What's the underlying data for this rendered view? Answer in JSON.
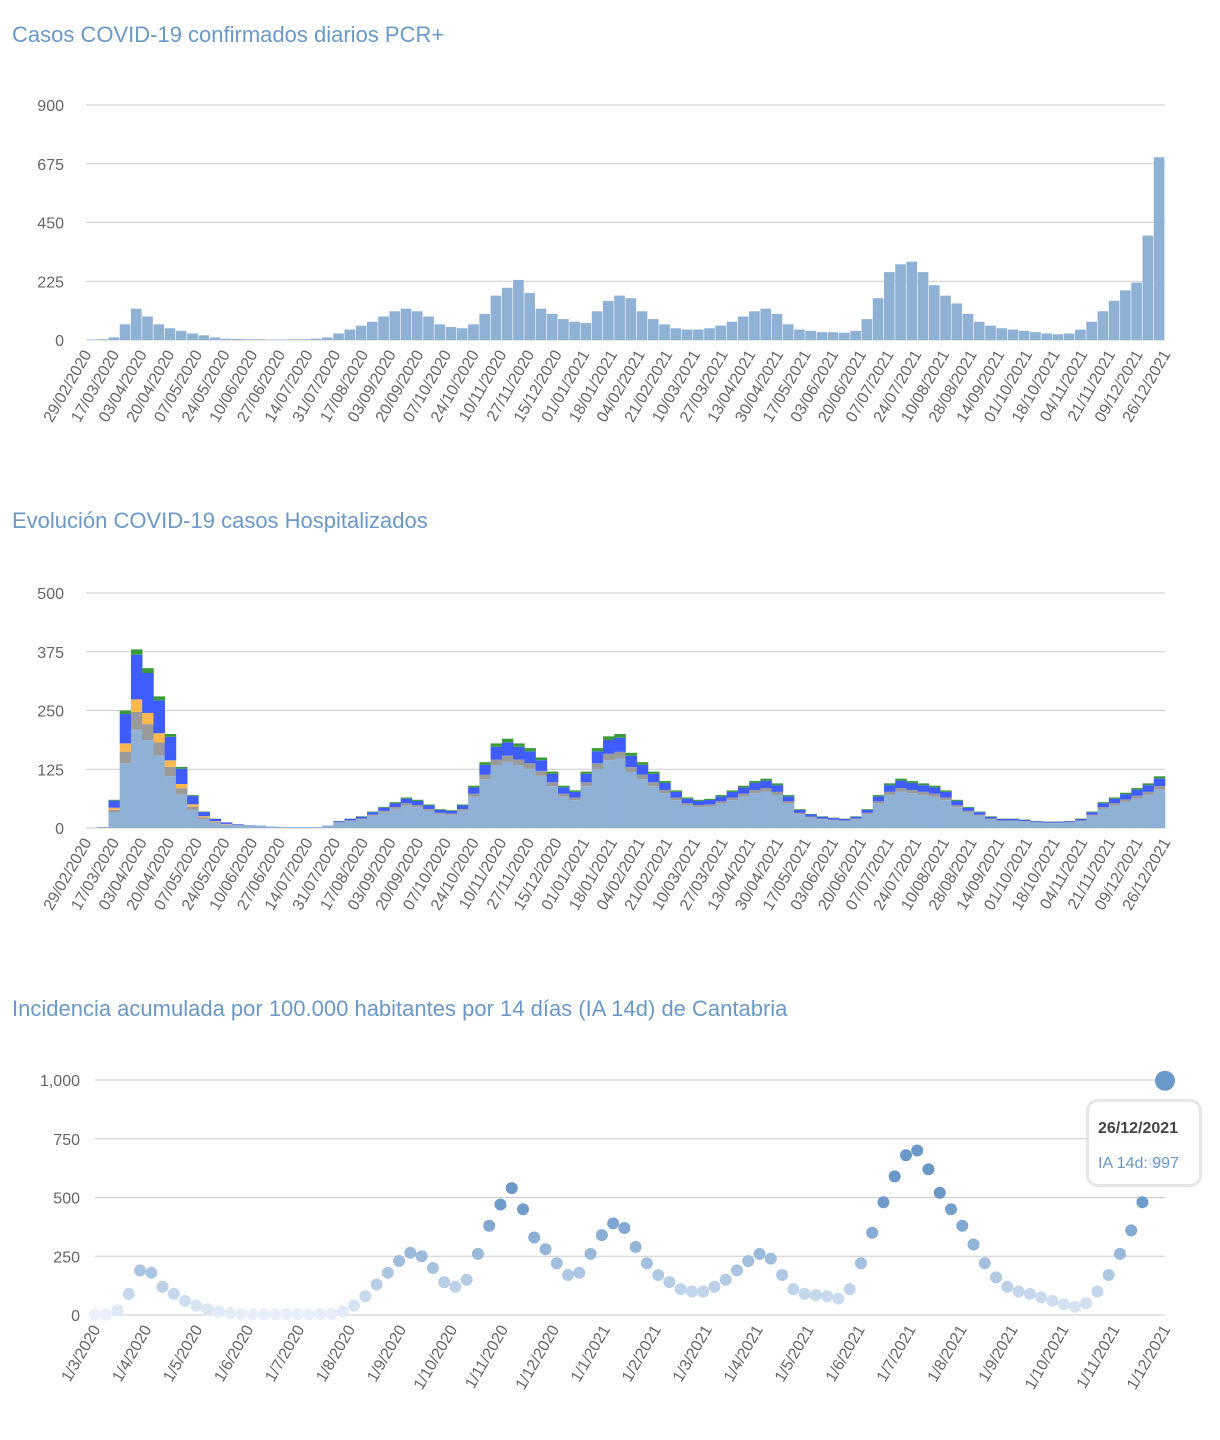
{
  "chart_data": [
    {
      "type": "bar",
      "title": "Casos COVID-19 confirmados diarios PCR+",
      "ylim": [
        0,
        900
      ],
      "yticks": [
        "0",
        "225",
        "450",
        "675",
        "900"
      ],
      "xticks": [
        "29/02/2020",
        "17/03/2020",
        "03/04/2020",
        "20/04/2020",
        "07/05/2020",
        "24/05/2020",
        "10/06/2020",
        "27/06/2020",
        "14/07/2020",
        "31/07/2020",
        "17/08/2020",
        "03/09/2020",
        "20/09/2020",
        "07/10/2020",
        "24/10/2020",
        "10/11/2020",
        "27/11/2020",
        "15/12/2020",
        "01/01/2021",
        "18/01/2021",
        "04/02/2021",
        "21/02/2021",
        "10/03/2021",
        "27/03/2021",
        "13/04/2021",
        "30/04/2021",
        "17/05/2021",
        "03/06/2021",
        "20/06/2021",
        "07/07/2021",
        "24/07/2021",
        "10/08/2021",
        "28/08/2021",
        "14/09/2021",
        "01/10/2021",
        "18/10/2021",
        "04/11/2021",
        "21/11/2021",
        "09/12/2021",
        "26/12/2021"
      ],
      "color": "#8fb1d6",
      "values": [
        2,
        3,
        10,
        60,
        120,
        90,
        60,
        45,
        35,
        25,
        18,
        10,
        5,
        4,
        3,
        3,
        2,
        2,
        3,
        3,
        5,
        10,
        25,
        40,
        55,
        70,
        90,
        110,
        120,
        110,
        90,
        60,
        50,
        45,
        60,
        100,
        170,
        200,
        230,
        180,
        120,
        100,
        80,
        70,
        65,
        110,
        150,
        170,
        160,
        110,
        80,
        60,
        45,
        40,
        40,
        45,
        55,
        70,
        90,
        110,
        120,
        100,
        60,
        40,
        35,
        30,
        30,
        28,
        35,
        80,
        160,
        260,
        290,
        300,
        260,
        210,
        170,
        140,
        100,
        70,
        55,
        45,
        40,
        35,
        30,
        25,
        22,
        25,
        40,
        70,
        110,
        150,
        190,
        220,
        400,
        700
      ]
    },
    {
      "type": "bar",
      "stacked": true,
      "title": "Evolución COVID-19 casos  Hospitalizados",
      "ylim": [
        0,
        500
      ],
      "yticks": [
        "0",
        "125",
        "250",
        "375",
        "500"
      ],
      "xticks": [
        "29/02/2020",
        "17/03/2020",
        "03/04/2020",
        "20/04/2020",
        "07/05/2020",
        "24/05/2020",
        "10/06/2020",
        "27/06/2020",
        "14/07/2020",
        "31/07/2020",
        "17/08/2020",
        "03/09/2020",
        "20/09/2020",
        "07/10/2020",
        "24/10/2020",
        "10/11/2020",
        "27/11/2020",
        "15/12/2020",
        "01/01/2021",
        "18/01/2021",
        "04/02/2021",
        "21/02/2021",
        "10/03/2021",
        "27/03/2021",
        "13/04/2021",
        "30/04/2021",
        "17/05/2021",
        "03/06/2021",
        "20/06/2021",
        "07/07/2021",
        "24/07/2021",
        "10/08/2021",
        "28/08/2021",
        "14/09/2021",
        "01/10/2021",
        "18/10/2021",
        "04/11/2021",
        "21/11/2021",
        "09/12/2021",
        "26/12/2021"
      ],
      "totals": [
        0,
        2,
        60,
        250,
        380,
        340,
        280,
        200,
        130,
        70,
        35,
        20,
        12,
        8,
        6,
        5,
        3,
        2,
        2,
        2,
        2,
        5,
        15,
        20,
        25,
        35,
        45,
        55,
        65,
        60,
        50,
        40,
        38,
        50,
        90,
        140,
        180,
        190,
        180,
        170,
        150,
        120,
        90,
        80,
        120,
        170,
        195,
        200,
        160,
        140,
        120,
        100,
        80,
        65,
        60,
        62,
        70,
        80,
        90,
        100,
        105,
        95,
        70,
        40,
        30,
        25,
        22,
        20,
        25,
        40,
        70,
        95,
        105,
        100,
        95,
        90,
        80,
        60,
        45,
        35,
        25,
        20,
        20,
        18,
        15,
        14,
        14,
        15,
        20,
        35,
        55,
        65,
        75,
        85,
        95,
        110
      ],
      "series": [
        {
          "color": "#8fb1d6",
          "share_wave1": 0.55,
          "share_later": 0.74
        },
        {
          "color": "#9a9a9a",
          "share_wave1": 0.1,
          "share_later": 0.07
        },
        {
          "color": "#ffb84d",
          "share_wave1": 0.07,
          "share_later": 0.0
        },
        {
          "color": "#3f5cff",
          "share_wave1": 0.25,
          "share_later": 0.15
        },
        {
          "color": "#3a9a3a",
          "share_wave1": 0.03,
          "share_later": 0.04
        }
      ]
    },
    {
      "type": "scatter",
      "title": "Incidencia acumulada por 100.000 habitantes por 14 días (IA 14d) de Cantabria",
      "ylim": [
        0,
        1000
      ],
      "yticks": [
        "0",
        "250",
        "500",
        "750",
        "1,000"
      ],
      "xticks": [
        "1/3/2020",
        "1/4/2020",
        "1/5/2020",
        "1/6/2020",
        "1/7/2020",
        "1/8/2020",
        "1/9/2020",
        "1/10/2020",
        "1/11/2020",
        "1/12/2020",
        "1/1/2021",
        "1/2/2021",
        "1/3/2021",
        "1/4/2021",
        "1/5/2021",
        "1/6/2021",
        "1/7/2021",
        "1/8/2021",
        "1/9/2021",
        "1/10/2021",
        "1/11/2021",
        "1/12/2021"
      ],
      "color": "#6a98c8",
      "values": [
        0,
        2,
        20,
        90,
        190,
        180,
        120,
        90,
        60,
        40,
        25,
        15,
        8,
        5,
        3,
        3,
        3,
        3,
        3,
        3,
        4,
        5,
        15,
        40,
        80,
        130,
        180,
        230,
        265,
        250,
        200,
        140,
        120,
        150,
        260,
        380,
        470,
        540,
        450,
        330,
        280,
        220,
        170,
        180,
        260,
        340,
        390,
        370,
        290,
        220,
        170,
        140,
        110,
        100,
        100,
        120,
        150,
        190,
        230,
        260,
        240,
        170,
        110,
        90,
        85,
        80,
        70,
        110,
        220,
        350,
        480,
        590,
        680,
        700,
        620,
        520,
        450,
        380,
        300,
        220,
        160,
        120,
        100,
        90,
        75,
        60,
        45,
        35,
        50,
        100,
        170,
        260,
        360,
        480,
        650,
        997
      ],
      "tooltip": {
        "date": "26/12/2021",
        "label": "IA 14d: 997"
      }
    }
  ]
}
